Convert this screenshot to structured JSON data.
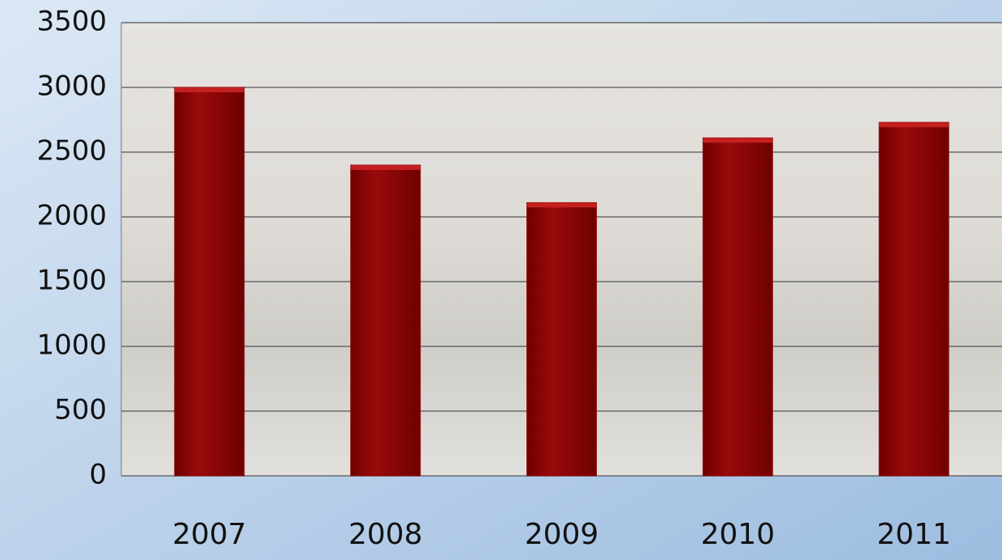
{
  "chart_data": {
    "type": "bar",
    "categories": [
      "2007",
      "2008",
      "2009",
      "2010",
      "2011"
    ],
    "values": [
      3000,
      2400,
      2110,
      2610,
      2730
    ],
    "color": "#8b0000",
    "ylim": [
      0,
      3500
    ],
    "yticks": [
      0,
      500,
      1000,
      1500,
      2000,
      2500,
      3000,
      3500
    ],
    "grid": true
  }
}
